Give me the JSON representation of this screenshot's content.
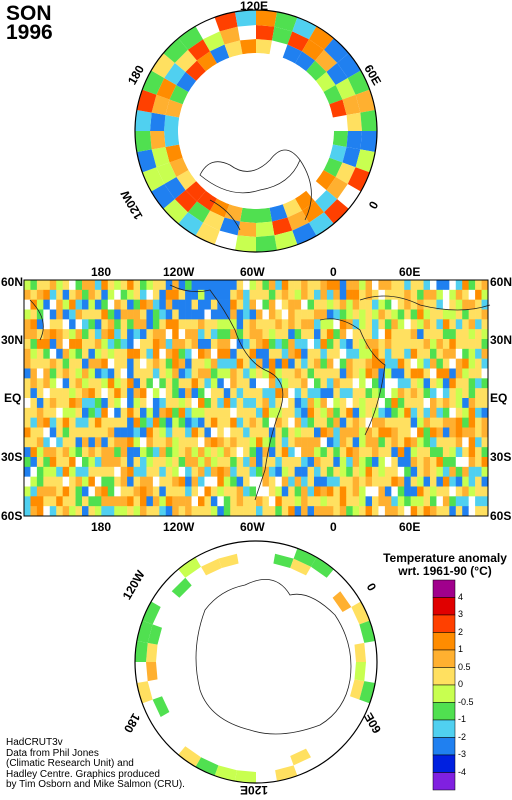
{
  "season": {
    "line1": "SON",
    "line2": "1996"
  },
  "north_pole": {
    "labels": {
      "top": "120E",
      "left": "180",
      "right": "60E",
      "lower_left": "120W",
      "lower_right": "0"
    }
  },
  "south_pole": {
    "labels": {
      "left": "120W",
      "right": "0",
      "lower_left": "180",
      "lower_right": "60E",
      "bottom": "120E"
    }
  },
  "map": {
    "lat_labels": [
      "60N",
      "30N",
      "EQ",
      "30S",
      "60S"
    ],
    "lon_labels": [
      "180",
      "120W",
      "60W",
      "0",
      "60E"
    ]
  },
  "legend": {
    "title_line1": "Temperature anomaly",
    "title_line2": "wrt. 1961-90  (°C)",
    "labels": [
      "4",
      "3",
      "2",
      "1",
      "0.5",
      "0",
      "-0.5",
      "-1",
      "-2",
      "-3",
      "-4"
    ],
    "colors": [
      "#a0008c",
      "#e00000",
      "#ff4000",
      "#ff8c00",
      "#ffb030",
      "#ffe060",
      "#c8ff50",
      "#50e050",
      "#50d0f0",
      "#2080f0",
      "#0020e0",
      "#8020e0"
    ]
  },
  "credit": {
    "lines": [
      "HadCRUT3v",
      "Data from Phil Jones",
      "(Climatic Research Unit) and",
      "Hadley Centre.  Graphics produced",
      "by Tim Osborn and Mike Salmon (CRU)."
    ]
  }
}
